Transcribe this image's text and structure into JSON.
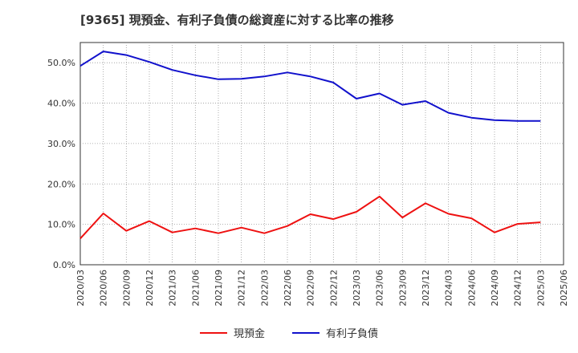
{
  "chart_data": {
    "type": "line",
    "title": "[9365]  現預金、有利子負債の総資産に対する比率の推移",
    "x": [
      "2020/03",
      "2020/06",
      "2020/09",
      "2020/12",
      "2021/03",
      "2021/06",
      "2021/09",
      "2021/12",
      "2022/03",
      "2022/06",
      "2022/09",
      "2022/12",
      "2023/03",
      "2023/06",
      "2023/09",
      "2023/12",
      "2024/03",
      "2024/06",
      "2024/09",
      "2024/12",
      "2025/03",
      "2025/06"
    ],
    "y_ticks": [
      "0.0%",
      "10.0%",
      "20.0%",
      "30.0%",
      "40.0%",
      "50.0%"
    ],
    "ylim": [
      0,
      55
    ],
    "series": [
      {
        "name": "現預金",
        "color": "#ee1111",
        "values": [
          6.5,
          12.7,
          8.4,
          10.8,
          8.0,
          9.0,
          7.8,
          9.2,
          7.8,
          9.6,
          12.5,
          11.3,
          13.1,
          16.9,
          11.7,
          15.2,
          12.6,
          11.5,
          8.0,
          10.1,
          10.5,
          null
        ]
      },
      {
        "name": "有利子負債",
        "color": "#1111cc",
        "values": [
          49.2,
          52.8,
          51.9,
          50.2,
          48.2,
          46.9,
          45.9,
          46.0,
          46.6,
          47.6,
          46.6,
          45.1,
          41.1,
          42.4,
          39.6,
          40.5,
          37.6,
          36.4,
          35.8,
          35.6,
          35.6,
          null
        ]
      }
    ]
  }
}
